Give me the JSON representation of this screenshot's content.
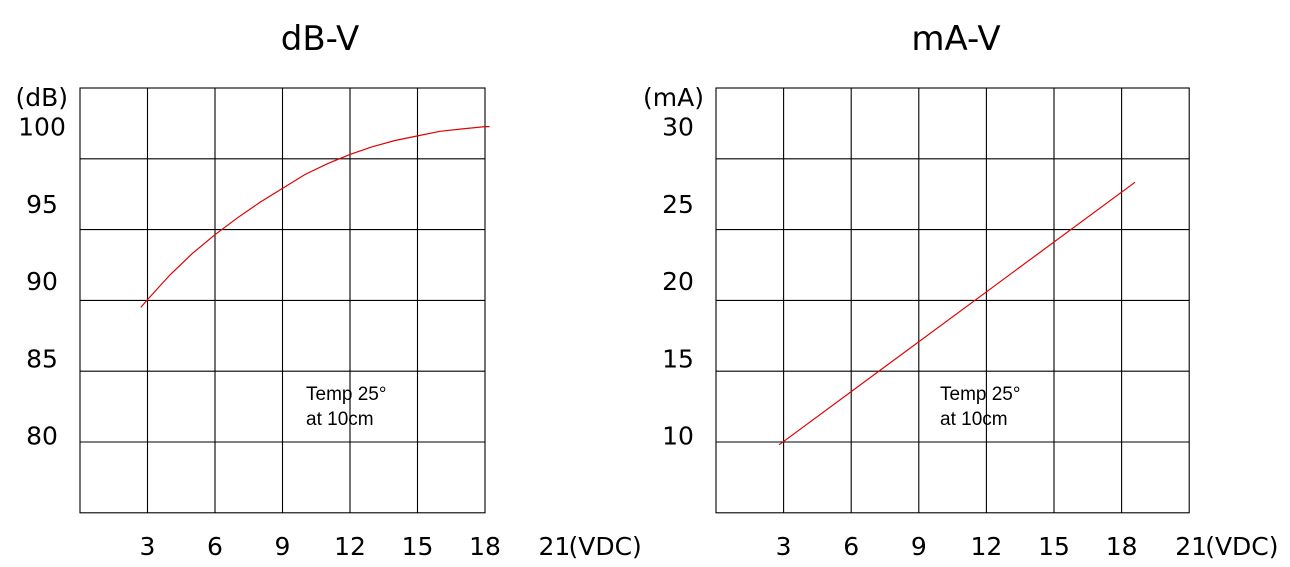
{
  "chart_data": [
    {
      "type": "line",
      "title": "dB-V",
      "y_unit_label": "(dB)",
      "x_unit_label": "(VDC)",
      "x_ticks": [
        "3",
        "6",
        "9",
        "12",
        "15",
        "18",
        "21"
      ],
      "y_ticks": [
        "100",
        "95",
        "90",
        "85",
        "80"
      ],
      "xlim": [
        0,
        21
      ],
      "ylim": [
        75,
        102.5
      ],
      "grid": true,
      "line_color": "#e00000",
      "annotation": [
        "Temp 25°",
        "at 10cm"
      ],
      "series": [
        {
          "x": [
            2.7,
            3,
            4,
            5,
            6,
            7,
            8,
            9,
            10,
            11,
            12,
            13,
            14,
            15,
            16,
            17,
            18,
            18.2
          ],
          "y": [
            88.3,
            88.8,
            90.4,
            91.8,
            93.0,
            94.1,
            95.1,
            96.0,
            96.9,
            97.6,
            98.2,
            98.7,
            99.1,
            99.4,
            99.7,
            99.85,
            100.0,
            100.0
          ]
        }
      ]
    },
    {
      "type": "line",
      "title": "mA-V",
      "y_unit_label": "(mA)",
      "x_unit_label": "(VDC)",
      "x_ticks": [
        "3",
        "6",
        "9",
        "12",
        "15",
        "18",
        "21"
      ],
      "y_ticks": [
        "30",
        "25",
        "20",
        "15",
        "10"
      ],
      "xlim": [
        0,
        21
      ],
      "ylim": [
        5,
        32.5
      ],
      "grid": true,
      "line_color": "#e00000",
      "annotation": [
        "Temp 25°",
        "at 10cm"
      ],
      "series": [
        {
          "x": [
            2.8,
            18.6
          ],
          "y": [
            9.4,
            26.4
          ]
        }
      ]
    }
  ]
}
